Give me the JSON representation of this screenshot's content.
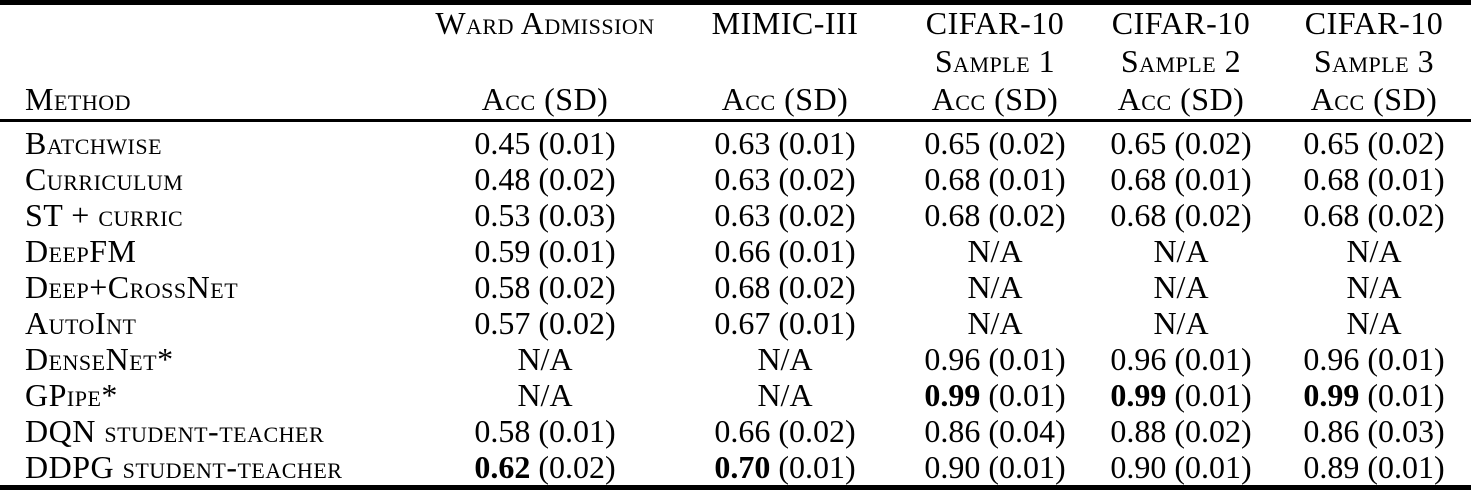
{
  "table": {
    "columns": [
      {
        "line1": "",
        "line2": "",
        "line3": "Method"
      },
      {
        "line1": "Ward Admission",
        "line2": "",
        "line3": "Acc (SD)"
      },
      {
        "line1": "MIMIC-III",
        "line2": "",
        "line3": "Acc (SD)"
      },
      {
        "line1": "CIFAR-10",
        "line2": "Sample 1",
        "line3": "Acc (SD)"
      },
      {
        "line1": "CIFAR-10",
        "line2": "Sample 2",
        "line3": "Acc (SD)"
      },
      {
        "line1": "CIFAR-10",
        "line2": "Sample 3",
        "line3": "Acc (SD)"
      }
    ],
    "rows": [
      {
        "method": "Batchwise",
        "cells": [
          {
            "acc": "0.45",
            "sd": "(0.01)",
            "bold": false
          },
          {
            "acc": "0.63",
            "sd": "(0.01)",
            "bold": false
          },
          {
            "acc": "0.65",
            "sd": "(0.02)",
            "bold": false
          },
          {
            "acc": "0.65",
            "sd": "(0.02)",
            "bold": false
          },
          {
            "acc": "0.65",
            "sd": "(0.02)",
            "bold": false
          }
        ]
      },
      {
        "method": "Curriculum",
        "cells": [
          {
            "acc": "0.48",
            "sd": "(0.02)",
            "bold": false
          },
          {
            "acc": "0.63",
            "sd": "(0.02)",
            "bold": false
          },
          {
            "acc": "0.68",
            "sd": "(0.01)",
            "bold": false
          },
          {
            "acc": "0.68",
            "sd": "(0.01)",
            "bold": false
          },
          {
            "acc": "0.68",
            "sd": "(0.01)",
            "bold": false
          }
        ]
      },
      {
        "method": "ST + curric",
        "cells": [
          {
            "acc": "0.53",
            "sd": "(0.03)",
            "bold": false
          },
          {
            "acc": "0.63",
            "sd": "(0.02)",
            "bold": false
          },
          {
            "acc": "0.68",
            "sd": "(0.02)",
            "bold": false
          },
          {
            "acc": "0.68",
            "sd": "(0.02)",
            "bold": false
          },
          {
            "acc": "0.68",
            "sd": "(0.02)",
            "bold": false
          }
        ]
      },
      {
        "method": "DeepFM",
        "cells": [
          {
            "acc": "0.59",
            "sd": "(0.01)",
            "bold": false
          },
          {
            "acc": "0.66",
            "sd": "(0.01)",
            "bold": false
          },
          {
            "acc": "N/A",
            "sd": "",
            "bold": false
          },
          {
            "acc": "N/A",
            "sd": "",
            "bold": false
          },
          {
            "acc": "N/A",
            "sd": "",
            "bold": false
          }
        ]
      },
      {
        "method": "Deep+CrossNet",
        "cells": [
          {
            "acc": "0.58",
            "sd": "(0.02)",
            "bold": false
          },
          {
            "acc": "0.68",
            "sd": "(0.02)",
            "bold": false
          },
          {
            "acc": "N/A",
            "sd": "",
            "bold": false
          },
          {
            "acc": "N/A",
            "sd": "",
            "bold": false
          },
          {
            "acc": "N/A",
            "sd": "",
            "bold": false
          }
        ]
      },
      {
        "method": "AutoInt",
        "cells": [
          {
            "acc": "0.57",
            "sd": "(0.02)",
            "bold": false
          },
          {
            "acc": "0.67",
            "sd": "(0.01)",
            "bold": false
          },
          {
            "acc": "N/A",
            "sd": "",
            "bold": false
          },
          {
            "acc": "N/A",
            "sd": "",
            "bold": false
          },
          {
            "acc": "N/A",
            "sd": "",
            "bold": false
          }
        ]
      },
      {
        "method": "DenseNet*",
        "cells": [
          {
            "acc": "N/A",
            "sd": "",
            "bold": false
          },
          {
            "acc": "N/A",
            "sd": "",
            "bold": false
          },
          {
            "acc": "0.96",
            "sd": "(0.01)",
            "bold": false
          },
          {
            "acc": "0.96",
            "sd": "(0.01)",
            "bold": false
          },
          {
            "acc": "0.96",
            "sd": "(0.01)",
            "bold": false
          }
        ]
      },
      {
        "method": "GPipe*",
        "cells": [
          {
            "acc": "N/A",
            "sd": "",
            "bold": false
          },
          {
            "acc": "N/A",
            "sd": "",
            "bold": false
          },
          {
            "acc": "0.99",
            "sd": "(0.01)",
            "bold": true
          },
          {
            "acc": "0.99",
            "sd": "(0.01)",
            "bold": true
          },
          {
            "acc": "0.99",
            "sd": "(0.01)",
            "bold": true
          }
        ]
      },
      {
        "method": "DQN student-teacher",
        "cells": [
          {
            "acc": "0.58",
            "sd": "(0.01)",
            "bold": false
          },
          {
            "acc": "0.66",
            "sd": "(0.02)",
            "bold": false
          },
          {
            "acc": "0.86",
            "sd": "(0.04)",
            "bold": false
          },
          {
            "acc": "0.88",
            "sd": "(0.02)",
            "bold": false
          },
          {
            "acc": "0.86",
            "sd": "(0.03)",
            "bold": false
          }
        ]
      },
      {
        "method": "DDPG student-teacher",
        "cells": [
          {
            "acc": "0.62",
            "sd": "(0.02)",
            "bold": true
          },
          {
            "acc": "0.70",
            "sd": "(0.01)",
            "bold": true
          },
          {
            "acc": "0.90",
            "sd": "(0.01)",
            "bold": false
          },
          {
            "acc": "0.90",
            "sd": "(0.01)",
            "bold": false
          },
          {
            "acc": "0.89",
            "sd": "(0.01)",
            "bold": false
          }
        ]
      }
    ]
  },
  "colors": {
    "text": "#000000",
    "background": "#ffffff",
    "rule": "#000000"
  }
}
